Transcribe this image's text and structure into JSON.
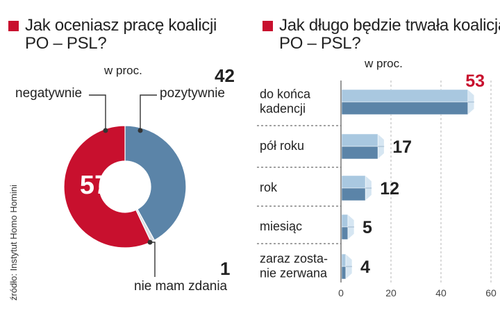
{
  "source": "źródło: Instytut Homo Homini",
  "chart_data": [
    {
      "type": "pie",
      "title": "Jak oceniasz pracę koalicji PO – PSL?",
      "unit": "w proc.",
      "labels": [
        "negatywnie",
        "pozytywnie",
        "nie mam zdania"
      ],
      "values": [
        57,
        42,
        1
      ],
      "colors": [
        "#c8102e",
        "#5b84a8",
        "#d9dde3"
      ]
    },
    {
      "type": "bar",
      "orientation": "horizontal",
      "title": "Jak długo będzie trwała koalicja PO – PSL?",
      "unit": "w proc.",
      "categories": [
        "do końca kadencji",
        "pół roku",
        "rok",
        "miesiąc",
        "zaraz zostanie zerwana"
      ],
      "category_lines": [
        [
          "do końca",
          "kadencji"
        ],
        [
          "pół roku"
        ],
        [
          "rok"
        ],
        [
          "miesiąc"
        ],
        [
          "zaraz zosta-",
          "nie zerwana"
        ]
      ],
      "values": [
        53,
        17,
        12,
        5,
        4
      ],
      "value_labels": [
        "53",
        "17",
        "12",
        "5",
        "4"
      ],
      "highlight_color": "#c8102e",
      "xlim": [
        0,
        60
      ],
      "xticks": [
        0,
        20,
        40,
        60
      ],
      "bar_colors": {
        "top": "#a9c8e0",
        "side": "#d6e6f2",
        "front": "#5b84a8"
      }
    }
  ]
}
